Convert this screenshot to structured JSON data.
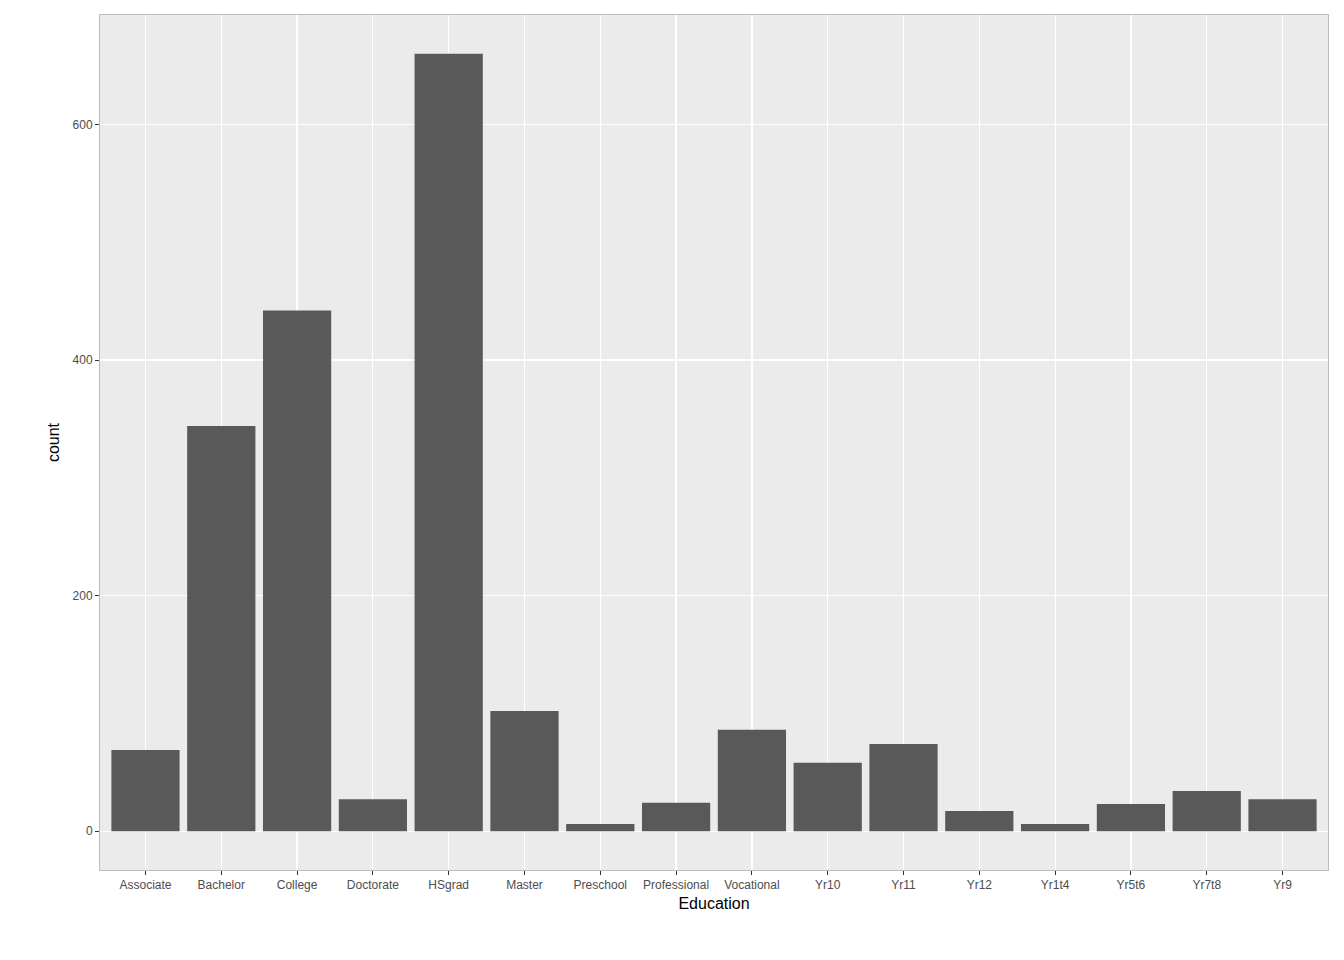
{
  "chart_data": {
    "type": "bar",
    "x_label": "Education",
    "y_label": "count",
    "categories": [
      "Associate",
      "Bachelor",
      "College",
      "Doctorate",
      "HSgrad",
      "Master",
      "Preschool",
      "Professional",
      "Vocational",
      "Yr10",
      "Yr11",
      "Yr12",
      "Yr1t4",
      "Yr5t6",
      "Yr7t8",
      "Yr9"
    ],
    "values": [
      69,
      344,
      442,
      27,
      660,
      102,
      6,
      24,
      86,
      58,
      74,
      17,
      6,
      23,
      34,
      27
    ],
    "color": "#595959",
    "ylim": [
      -33,
      693
    ],
    "yticks": [
      0,
      200,
      400,
      600
    ],
    "grid": true
  }
}
